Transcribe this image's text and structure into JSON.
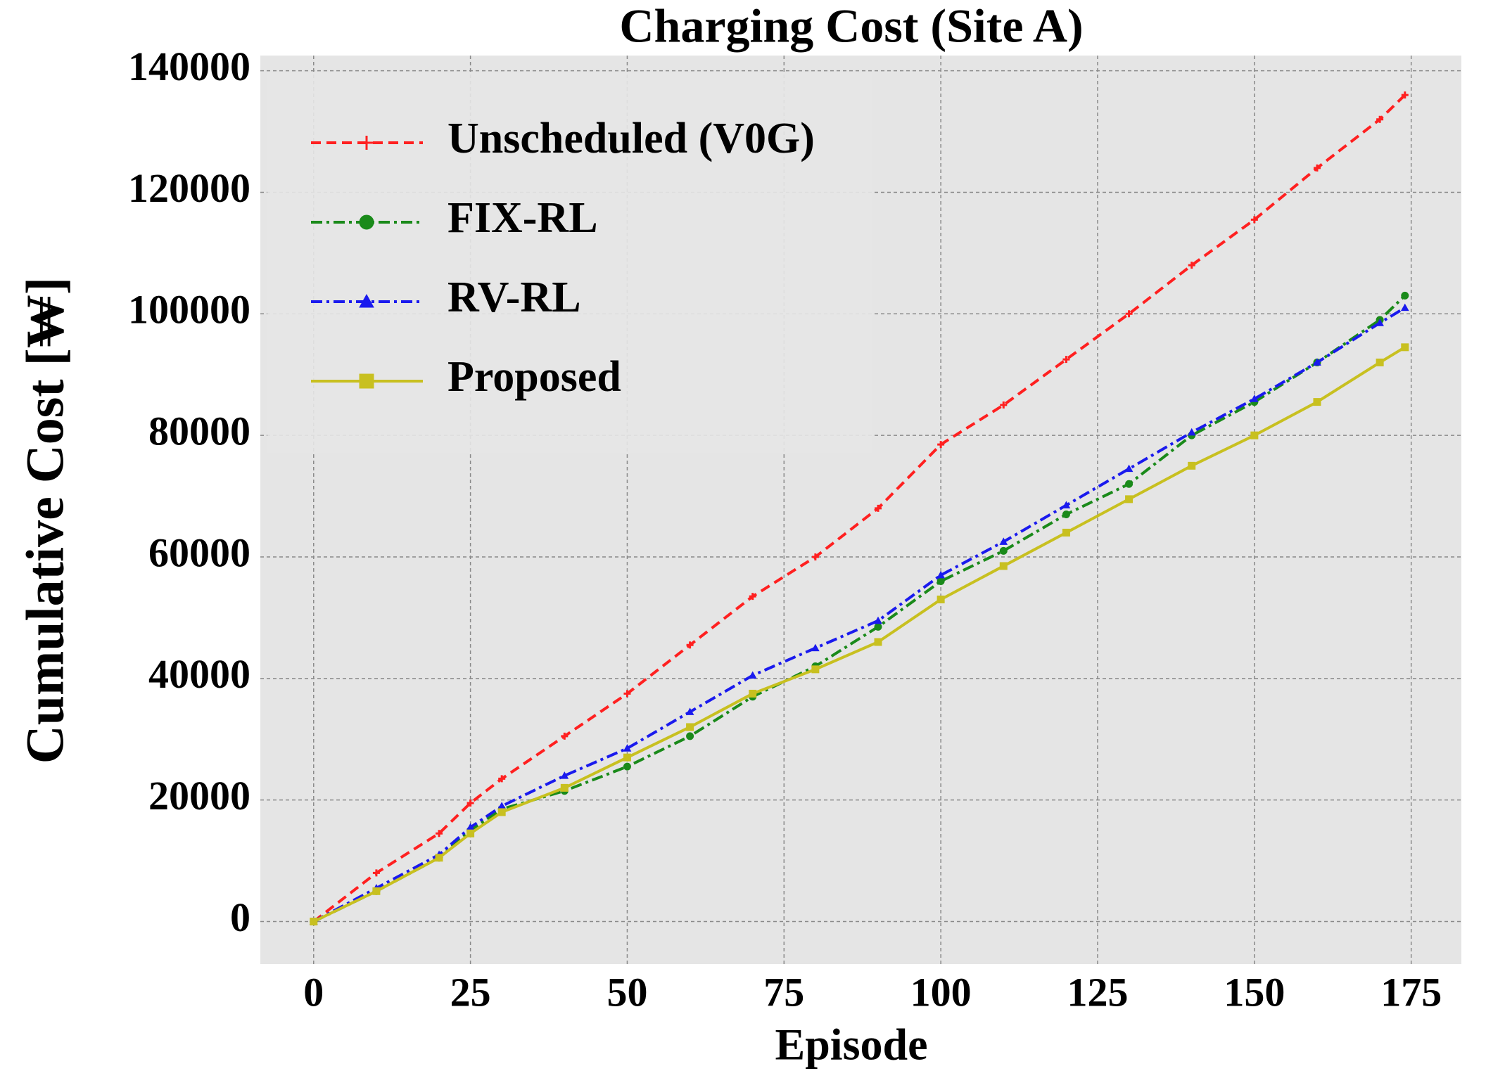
{
  "chart_data": {
    "type": "line",
    "title": "Charging Cost (Site A)",
    "x_label": "Episode",
    "y_label": "Cumulative Cost [₩]",
    "x": [
      0,
      10,
      20,
      25,
      30,
      40,
      50,
      60,
      70,
      80,
      90,
      100,
      110,
      120,
      130,
      140,
      150,
      160,
      170,
      174
    ],
    "series": [
      {
        "name": "Unscheduled (V0G)",
        "color": "#ff2020",
        "dash": "dashed",
        "marker": "plus",
        "values": [
          0,
          8000,
          14500,
          19500,
          23500,
          30500,
          37500,
          45500,
          53500,
          60000,
          68000,
          78500,
          85000,
          92500,
          100000,
          108000,
          115500,
          124000,
          132000,
          136000
        ]
      },
      {
        "name": "FIX-RL",
        "color": "#1a8a1a",
        "dash": "dashdot",
        "marker": "circle",
        "values": [
          0,
          5000,
          10500,
          15000,
          18500,
          21500,
          25500,
          30500,
          37000,
          42000,
          48500,
          56000,
          61000,
          67000,
          72000,
          80000,
          85500,
          92000,
          99000,
          103000
        ]
      },
      {
        "name": "RV-RL",
        "color": "#1a1aee",
        "dash": "dashdot",
        "marker": "triangle",
        "values": [
          0,
          5500,
          11000,
          15500,
          19000,
          24000,
          28500,
          34500,
          40500,
          45000,
          49500,
          57000,
          62500,
          68500,
          74500,
          80500,
          86000,
          92000,
          98500,
          101000
        ]
      },
      {
        "name": "Proposed",
        "color": "#c8c020",
        "dash": "solid",
        "marker": "square",
        "values": [
          0,
          5000,
          10500,
          14500,
          18000,
          22000,
          27000,
          32000,
          37500,
          41500,
          46000,
          53000,
          58500,
          64000,
          69500,
          75000,
          80000,
          85500,
          92000,
          94500
        ]
      }
    ],
    "xlim": [
      -8.5,
      183
    ],
    "ylim": [
      -7000,
      142500
    ],
    "xticks": [
      0,
      25,
      50,
      75,
      100,
      125,
      150,
      175
    ],
    "yticks": [
      0,
      20000,
      40000,
      60000,
      80000,
      100000,
      120000,
      140000
    ],
    "grid": true,
    "legend": "upper left"
  }
}
